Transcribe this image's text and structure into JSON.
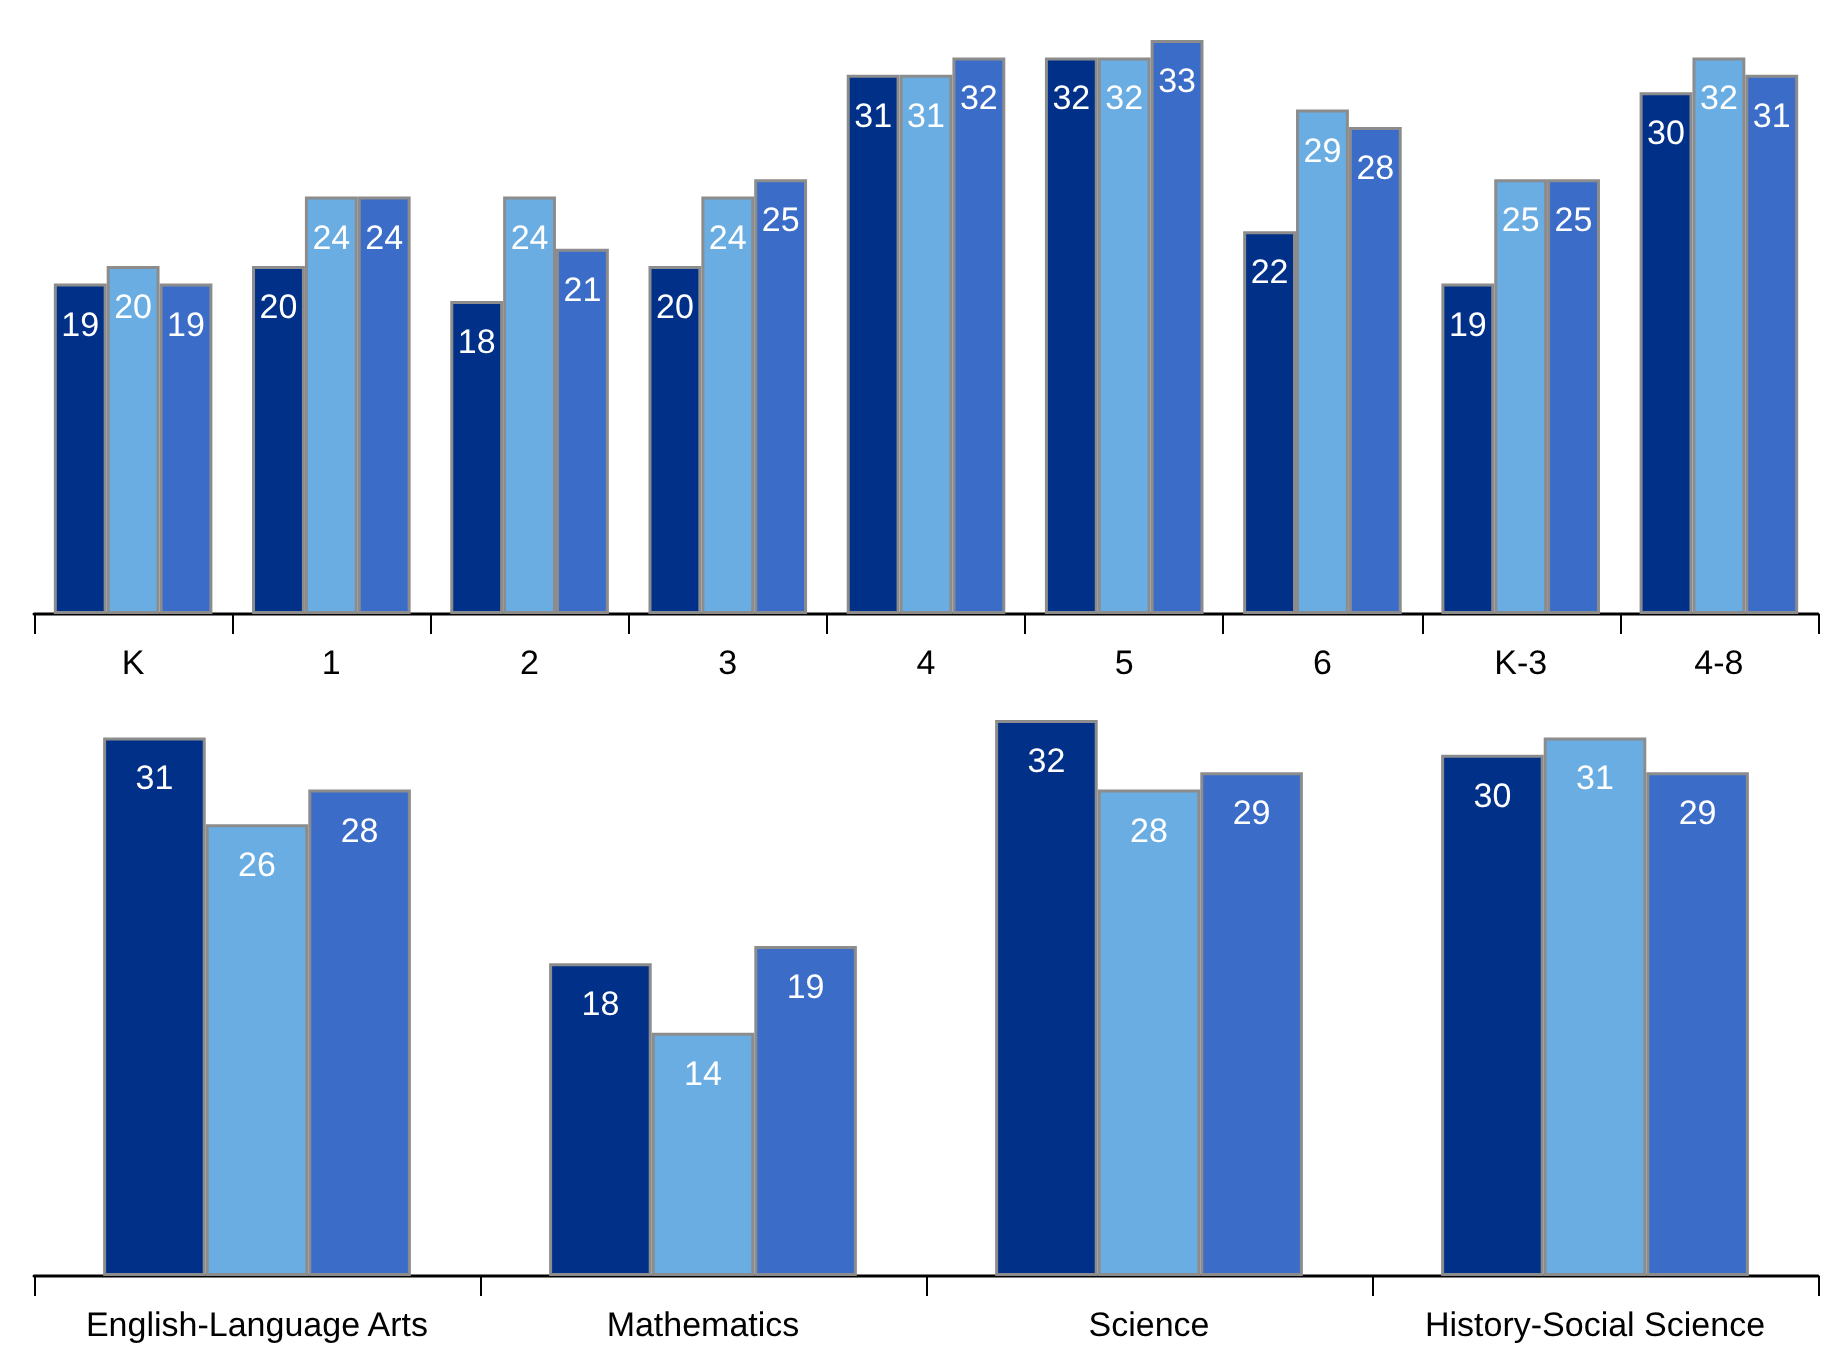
{
  "chart_data": [
    {
      "type": "bar",
      "categories": [
        "K",
        "1",
        "2",
        "3",
        "4",
        "5",
        "6",
        "K-3",
        "4-8"
      ],
      "data_labels": true,
      "grid": false,
      "series": [
        {
          "color": "#003087",
          "values": [
            19,
            20,
            18,
            20,
            31,
            32,
            22,
            19,
            30
          ]
        },
        {
          "color": "#69ade3",
          "values": [
            20,
            24,
            24,
            24,
            31,
            32,
            29,
            25,
            32
          ]
        },
        {
          "color": "#3a6cc8",
          "values": [
            19,
            24,
            21,
            25,
            32,
            33,
            28,
            25,
            31
          ]
        }
      ]
    },
    {
      "type": "bar",
      "categories": [
        "English-Language Arts",
        "Mathematics",
        "Science",
        "History-Social Science"
      ],
      "data_labels": true,
      "grid": false,
      "series": [
        {
          "color": "#003087",
          "values": [
            31,
            18,
            32,
            30
          ]
        },
        {
          "color": "#69ade3",
          "values": [
            26,
            14,
            28,
            31
          ]
        },
        {
          "color": "#3a6cc8",
          "values": [
            28,
            19,
            29,
            29
          ]
        }
      ]
    }
  ]
}
